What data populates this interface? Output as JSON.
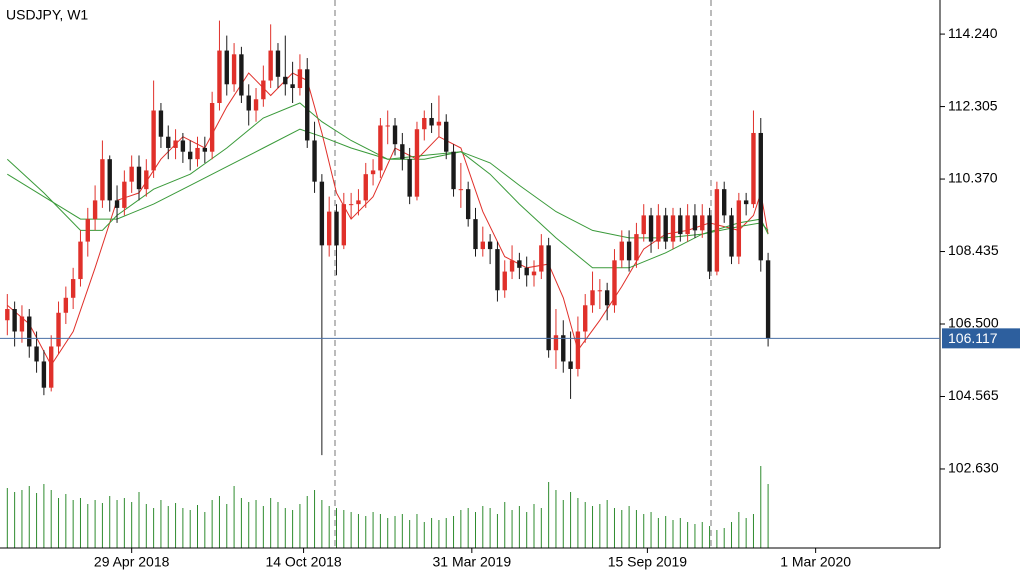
{
  "chart_data": {
    "type": "candlestick",
    "title": "USDJPY, W1",
    "ylim": [
      100.52,
      115.15
    ],
    "yticks": [
      {
        "value": 102.63,
        "label": "102.630"
      },
      {
        "value": 104.565,
        "label": "104.565"
      },
      {
        "value": 106.5,
        "label": "106.500"
      },
      {
        "value": 108.435,
        "label": "108.435"
      },
      {
        "value": 110.37,
        "label": "110.370"
      },
      {
        "value": 112.305,
        "label": "112.305"
      },
      {
        "value": 114.24,
        "label": "114.240"
      }
    ],
    "xlim": [
      -1,
      127.5
    ],
    "xticks": [
      {
        "value": 17,
        "label": "29 Apr 2018"
      },
      {
        "value": 40.5,
        "label": "14 Oct 2018"
      },
      {
        "value": 63.5,
        "label": "31 Mar 2019"
      },
      {
        "value": 87.5,
        "label": "15 Sep 2019"
      },
      {
        "value": 110.5,
        "label": "1 Mar 2020"
      }
    ],
    "last_price": 106.117,
    "up_color": "#e0302a",
    "down_color": "#1a1a1a",
    "ohlc": [
      [
        106.6,
        107.3,
        106.2,
        106.9
      ],
      [
        106.9,
        107.1,
        105.9,
        106.3
      ],
      [
        106.3,
        107.0,
        106.0,
        106.7
      ],
      [
        106.7,
        106.9,
        105.6,
        105.9
      ],
      [
        105.9,
        106.3,
        105.2,
        105.5
      ],
      [
        105.5,
        105.8,
        104.6,
        104.8
      ],
      [
        104.8,
        106.2,
        104.7,
        105.9
      ],
      [
        105.9,
        107.1,
        105.7,
        106.8
      ],
      [
        106.8,
        107.5,
        106.5,
        107.2
      ],
      [
        107.2,
        108.0,
        106.9,
        107.7
      ],
      [
        107.7,
        109.0,
        107.5,
        108.7
      ],
      [
        108.7,
        109.6,
        108.3,
        109.3
      ],
      [
        109.3,
        110.2,
        109.0,
        109.8
      ],
      [
        109.8,
        111.4,
        109.6,
        110.9
      ],
      [
        110.9,
        111.0,
        109.5,
        109.8
      ],
      [
        109.8,
        110.2,
        109.2,
        109.6
      ],
      [
        109.6,
        110.6,
        109.4,
        110.3
      ],
      [
        110.3,
        111.0,
        110.0,
        110.7
      ],
      [
        110.7,
        111.0,
        109.8,
        110.1
      ],
      [
        110.1,
        110.9,
        109.9,
        110.6
      ],
      [
        110.6,
        113.0,
        110.4,
        112.2
      ],
      [
        112.2,
        112.4,
        111.2,
        111.5
      ],
      [
        111.5,
        111.8,
        110.9,
        111.2
      ],
      [
        111.2,
        111.7,
        110.9,
        111.4
      ],
      [
        111.4,
        111.6,
        110.8,
        111.1
      ],
      [
        111.1,
        111.4,
        110.6,
        110.9
      ],
      [
        110.9,
        111.5,
        110.7,
        111.2
      ],
      [
        111.2,
        111.5,
        110.8,
        111.1
      ],
      [
        111.1,
        112.7,
        110.9,
        112.4
      ],
      [
        112.4,
        114.6,
        112.2,
        113.8
      ],
      [
        113.8,
        114.2,
        112.6,
        112.9
      ],
      [
        112.9,
        114.0,
        112.7,
        113.7
      ],
      [
        113.7,
        113.9,
        112.4,
        112.6
      ],
      [
        112.6,
        112.9,
        111.8,
        112.2
      ],
      [
        112.2,
        112.8,
        111.9,
        112.5
      ],
      [
        112.5,
        113.4,
        112.3,
        113.0
      ],
      [
        113.0,
        114.5,
        112.8,
        113.8
      ],
      [
        113.8,
        114.0,
        112.8,
        113.1
      ],
      [
        113.1,
        114.2,
        112.6,
        112.9
      ],
      [
        112.9,
        113.5,
        112.4,
        112.8
      ],
      [
        112.8,
        113.7,
        112.6,
        113.3
      ],
      [
        113.3,
        113.6,
        111.2,
        111.4
      ],
      [
        111.4,
        111.9,
        110.0,
        110.3
      ],
      [
        110.3,
        110.5,
        103.0,
        108.6
      ],
      [
        108.6,
        109.9,
        108.3,
        109.5
      ],
      [
        109.5,
        109.7,
        107.8,
        108.6
      ],
      [
        108.6,
        110.0,
        108.5,
        109.7
      ],
      [
        109.7,
        110.0,
        109.3,
        109.7
      ],
      [
        109.7,
        110.1,
        109.4,
        109.8
      ],
      [
        109.8,
        110.8,
        109.6,
        110.5
      ],
      [
        110.5,
        110.9,
        110.2,
        110.6
      ],
      [
        110.6,
        112.0,
        110.4,
        111.8
      ],
      [
        111.8,
        112.2,
        111.3,
        111.8
      ],
      [
        111.8,
        112.0,
        111.0,
        111.3
      ],
      [
        111.3,
        111.6,
        110.6,
        110.9
      ],
      [
        110.9,
        111.2,
        109.7,
        109.9
      ],
      [
        109.9,
        111.9,
        109.8,
        111.7
      ],
      [
        111.7,
        112.2,
        111.4,
        112.0
      ],
      [
        112.0,
        112.4,
        111.6,
        111.8
      ],
      [
        111.8,
        112.6,
        111.5,
        111.9
      ],
      [
        111.9,
        112.1,
        110.9,
        111.1
      ],
      [
        111.1,
        111.3,
        109.9,
        110.1
      ],
      [
        110.1,
        110.8,
        109.6,
        110.1
      ],
      [
        110.1,
        110.3,
        109.1,
        109.3
      ],
      [
        109.3,
        109.6,
        108.3,
        108.5
      ],
      [
        108.5,
        109.1,
        108.3,
        108.7
      ],
      [
        108.7,
        108.9,
        108.1,
        108.5
      ],
      [
        108.5,
        108.7,
        107.1,
        107.4
      ],
      [
        107.4,
        108.2,
        107.2,
        107.9
      ],
      [
        107.9,
        108.6,
        107.7,
        108.2
      ],
      [
        108.2,
        108.4,
        107.7,
        108.0
      ],
      [
        108.0,
        108.3,
        107.5,
        107.8
      ],
      [
        107.8,
        108.2,
        107.5,
        107.9
      ],
      [
        107.9,
        108.9,
        107.7,
        108.6
      ],
      [
        108.6,
        108.8,
        105.6,
        105.8
      ],
      [
        105.8,
        106.9,
        105.3,
        106.2
      ],
      [
        106.2,
        106.6,
        105.2,
        105.5
      ],
      [
        105.5,
        106.3,
        104.5,
        105.3
      ],
      [
        105.3,
        106.7,
        105.1,
        106.3
      ],
      [
        106.3,
        107.3,
        106.0,
        107.0
      ],
      [
        107.0,
        107.9,
        106.8,
        107.4
      ],
      [
        107.4,
        107.7,
        106.9,
        107.4
      ],
      [
        107.4,
        107.6,
        106.6,
        107.0
      ],
      [
        107.0,
        108.5,
        106.8,
        108.2
      ],
      [
        108.2,
        109.0,
        108.0,
        108.7
      ],
      [
        108.7,
        109.0,
        107.9,
        108.2
      ],
      [
        108.2,
        109.2,
        108.0,
        108.9
      ],
      [
        108.9,
        109.7,
        108.7,
        109.4
      ],
      [
        109.4,
        109.6,
        108.4,
        108.7
      ],
      [
        108.7,
        109.7,
        108.5,
        109.4
      ],
      [
        109.4,
        109.6,
        108.5,
        108.7
      ],
      [
        108.7,
        109.6,
        108.5,
        109.4
      ],
      [
        109.4,
        109.6,
        108.7,
        108.9
      ],
      [
        108.9,
        109.7,
        108.7,
        109.4
      ],
      [
        109.4,
        109.7,
        108.8,
        109.0
      ],
      [
        109.0,
        109.7,
        108.8,
        109.4
      ],
      [
        109.4,
        109.6,
        107.7,
        107.9
      ],
      [
        107.9,
        110.3,
        107.8,
        110.1
      ],
      [
        110.1,
        110.3,
        109.2,
        109.4
      ],
      [
        109.4,
        109.6,
        108.1,
        108.3
      ],
      [
        108.3,
        110.0,
        108.1,
        109.8
      ],
      [
        109.8,
        110.0,
        109.4,
        109.7
      ],
      [
        109.7,
        112.2,
        109.6,
        111.6
      ],
      [
        111.6,
        112.0,
        107.9,
        108.2
      ],
      [
        108.2,
        108.4,
        105.9,
        106.117
      ]
    ],
    "volume_color": "#2e8b2e",
    "volume_ylim": [
      0,
      100
    ],
    "volume": [
      60,
      56,
      58,
      62,
      55,
      64,
      58,
      50,
      54,
      48,
      50,
      44,
      48,
      45,
      52,
      48,
      50,
      46,
      56,
      44,
      40,
      48,
      42,
      45,
      40,
      38,
      43,
      36,
      48,
      52,
      44,
      62,
      50,
      46,
      48,
      42,
      50,
      46,
      40,
      38,
      44,
      52,
      58,
      48,
      42,
      40,
      38,
      36,
      34,
      32,
      36,
      34,
      30,
      32,
      34,
      28,
      34,
      26,
      30,
      28,
      30,
      32,
      38,
      40,
      36,
      42,
      40,
      34,
      46,
      38,
      42,
      36,
      44,
      40,
      66,
      58,
      48,
      56,
      50,
      46,
      42,
      44,
      48,
      40,
      38,
      42,
      38,
      34,
      36,
      30,
      32,
      28,
      30,
      26,
      24,
      26,
      22,
      18,
      20,
      26,
      36,
      30,
      34,
      82,
      64
    ],
    "lines": [
      {
        "color": "#e0302a",
        "x": [
          0,
          3,
          6,
          9,
          12,
          15,
          18,
          21,
          24,
          27,
          30,
          33,
          36,
          39,
          41,
          43,
          45,
          47,
          50,
          53,
          56,
          59,
          62,
          65,
          68,
          71,
          74,
          76,
          78,
          81,
          84,
          87,
          90,
          93,
          96,
          98,
          100,
          102,
          103,
          104
        ],
        "values": [
          107.0,
          106.5,
          105.4,
          106.3,
          108.0,
          109.8,
          110.0,
          110.9,
          111.5,
          111.2,
          112.3,
          113.2,
          112.6,
          113.2,
          113.0,
          111.6,
          110.0,
          109.3,
          109.9,
          111.2,
          110.9,
          111.5,
          111.2,
          109.5,
          108.3,
          108.0,
          108.1,
          107.2,
          105.8,
          106.6,
          107.5,
          108.5,
          108.9,
          109.0,
          109.2,
          109.1,
          109.0,
          109.4,
          110.0,
          108.9
        ]
      },
      {
        "color": "#3a9a3a",
        "x": [
          0,
          5,
          10,
          13,
          15,
          20,
          25,
          30,
          35,
          40,
          43,
          47,
          52,
          57,
          62,
          66,
          70,
          75,
          80,
          85,
          90,
          95,
          100,
          103,
          104
        ],
        "values": [
          110.9,
          110.0,
          109.0,
          109.0,
          109.4,
          110.1,
          110.5,
          111.2,
          112.0,
          112.4,
          111.9,
          111.4,
          110.9,
          110.9,
          111.1,
          110.5,
          109.7,
          108.8,
          108.0,
          108.0,
          108.4,
          108.9,
          109.2,
          109.3,
          108.9
        ]
      },
      {
        "color": "#3a9a3a",
        "x": [
          0,
          5,
          10,
          15,
          20,
          25,
          30,
          35,
          40,
          43,
          47,
          52,
          57,
          62,
          66,
          70,
          75,
          80,
          85,
          90,
          95,
          100,
          103,
          104
        ],
        "values": [
          110.5,
          109.9,
          109.3,
          109.3,
          109.7,
          110.2,
          110.7,
          111.2,
          111.7,
          111.5,
          111.2,
          110.9,
          111.0,
          111.1,
          110.8,
          110.2,
          109.5,
          109.0,
          108.8,
          108.8,
          108.9,
          109.1,
          109.2,
          109.0
        ]
      }
    ]
  }
}
